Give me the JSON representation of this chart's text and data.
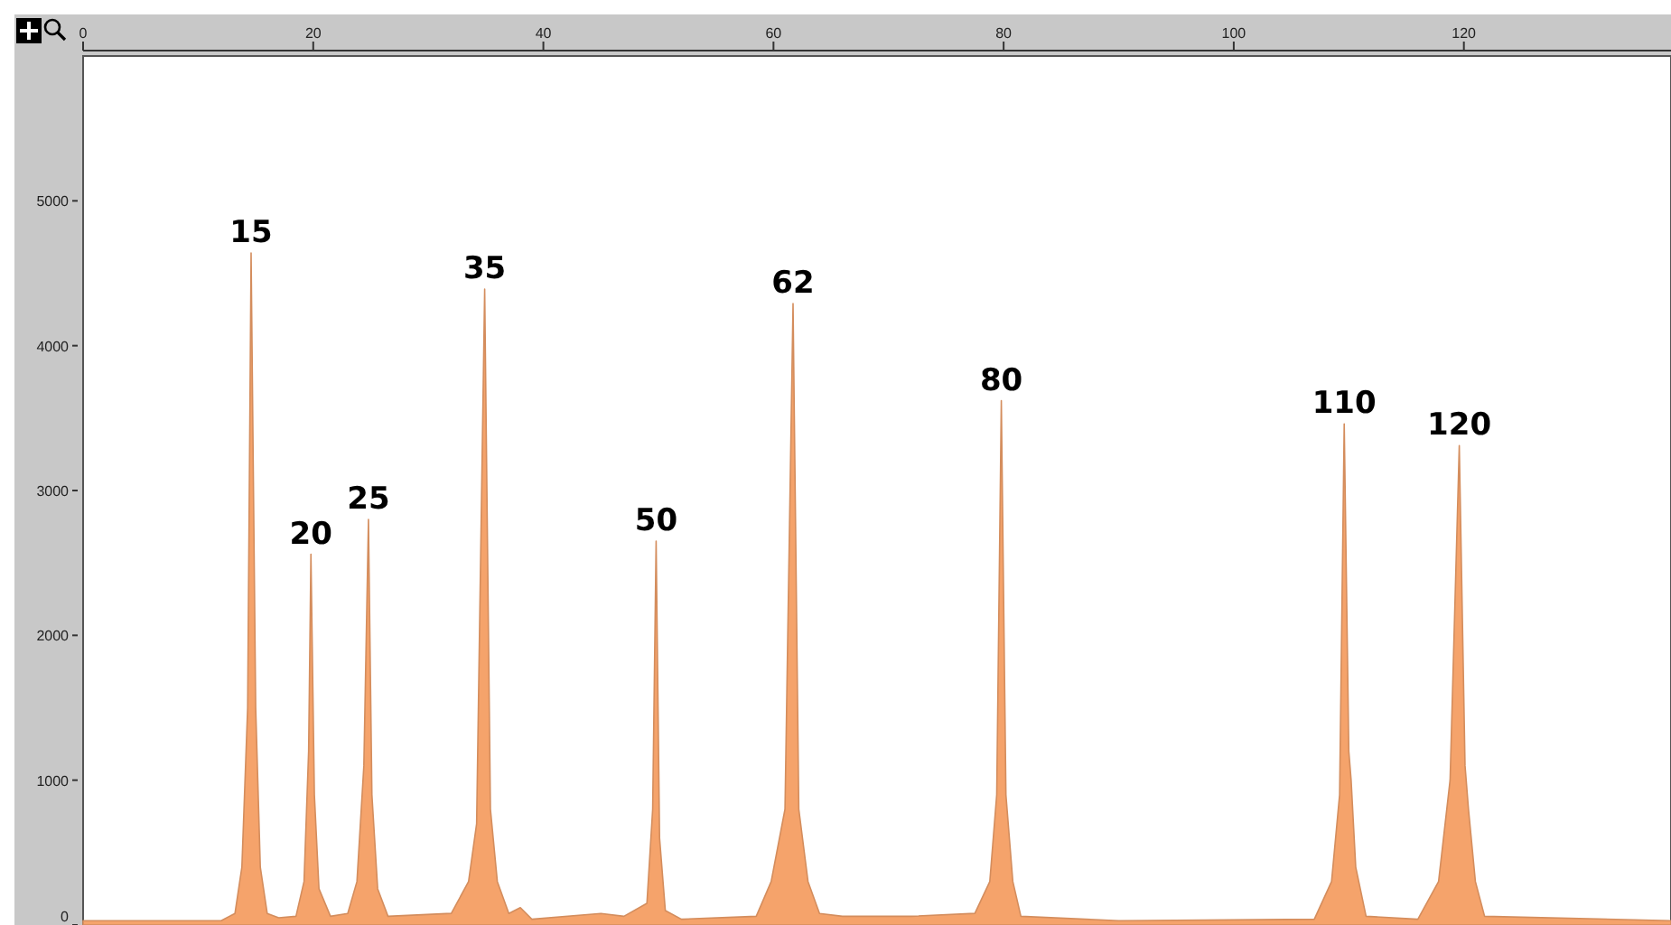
{
  "chart_data": {
    "type": "area",
    "xlim": [
      0,
      138
    ],
    "xticks": [
      0,
      20,
      40,
      60,
      80,
      100,
      120
    ],
    "ylim": [
      0,
      6000
    ],
    "yticks": [
      0,
      1000,
      2000,
      3000,
      4000,
      5000
    ],
    "grid": false,
    "series": [
      {
        "color": "#f5a36b",
        "x": [
          0,
          12,
          13.2,
          13.8,
          14.3,
          14.6,
          15,
          15.4,
          16,
          17,
          18.5,
          19.2,
          19.6,
          19.8,
          20.1,
          20.5,
          21.5,
          23,
          23.8,
          24.4,
          24.8,
          25.1,
          25.6,
          26.5,
          32,
          33.5,
          34.2,
          34.9,
          35.4,
          36,
          37,
          38,
          39,
          45,
          47,
          49,
          49.5,
          49.8,
          50.1,
          50.6,
          52,
          58.5,
          59.8,
          61,
          61.7,
          62.2,
          63,
          64,
          66,
          72,
          77.5,
          78.8,
          79.4,
          79.8,
          80.2,
          80.8,
          81.5,
          90,
          107,
          108.5,
          109.2,
          109.6,
          110,
          110.2,
          110.6,
          111.5,
          116,
          117.8,
          118.8,
          119.6,
          120.1,
          120.4,
          121,
          121.8,
          138
        ],
        "values": [
          30,
          30,
          80,
          400,
          1500,
          4640,
          1500,
          400,
          80,
          50,
          60,
          300,
          1200,
          2560,
          900,
          250,
          60,
          80,
          300,
          1100,
          2800,
          900,
          250,
          60,
          80,
          300,
          700,
          4390,
          800,
          300,
          80,
          120,
          40,
          80,
          60,
          150,
          800,
          2650,
          600,
          100,
          40,
          60,
          300,
          800,
          4290,
          800,
          300,
          80,
          60,
          60,
          80,
          300,
          900,
          3620,
          900,
          300,
          60,
          30,
          40,
          300,
          900,
          3460,
          1200,
          1000,
          400,
          60,
          40,
          300,
          1000,
          3310,
          1100,
          800,
          300,
          60,
          30
        ]
      }
    ],
    "annotations": [
      {
        "text": "15",
        "x": 14.6,
        "y": 4640
      },
      {
        "text": "20",
        "x": 19.8,
        "y": 2560
      },
      {
        "text": "25",
        "x": 24.8,
        "y": 2800
      },
      {
        "text": "35",
        "x": 34.9,
        "y": 4390
      },
      {
        "text": "50",
        "x": 49.8,
        "y": 2650
      },
      {
        "text": "62",
        "x": 61.7,
        "y": 4290
      },
      {
        "text": "80",
        "x": 79.8,
        "y": 3620
      },
      {
        "text": "110",
        "x": 109.6,
        "y": 3460
      },
      {
        "text": "120",
        "x": 119.6,
        "y": 3310
      }
    ]
  }
}
